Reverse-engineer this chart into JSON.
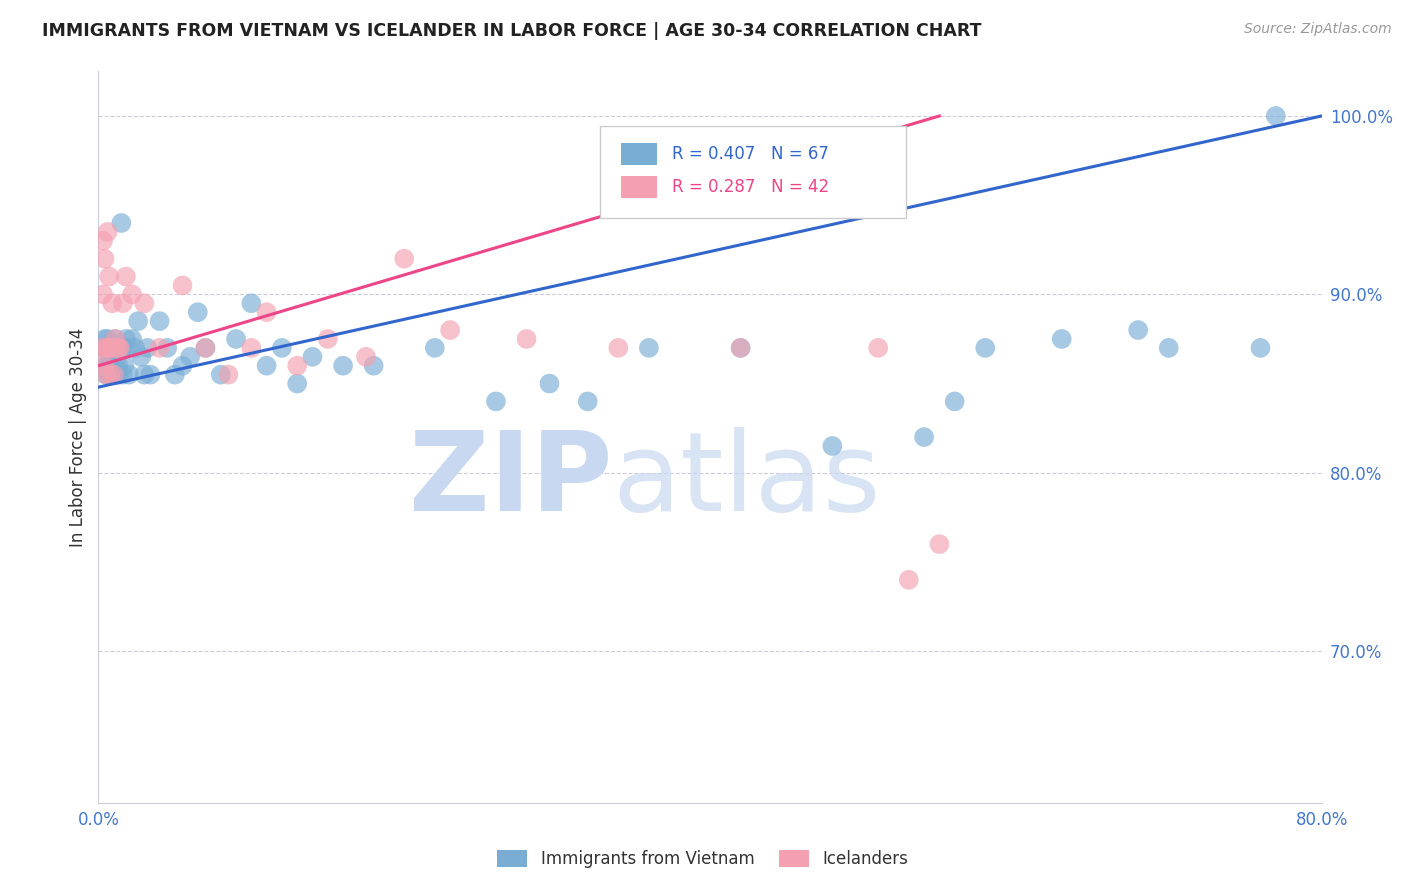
{
  "title": "IMMIGRANTS FROM VIETNAM VS ICELANDER IN LABOR FORCE | AGE 30-34 CORRELATION CHART",
  "source": "Source: ZipAtlas.com",
  "ylabel": "In Labor Force | Age 30-34",
  "xlim": [
    0.0,
    0.8
  ],
  "ylim": [
    0.615,
    1.025
  ],
  "yticks": [
    0.7,
    0.8,
    0.9,
    1.0
  ],
  "ytick_labels": [
    "70.0%",
    "80.0%",
    "90.0%",
    "100.0%"
  ],
  "blue_R": 0.407,
  "blue_N": 67,
  "pink_R": 0.287,
  "pink_N": 42,
  "blue_color": "#7aadd4",
  "pink_color": "#f4a0b0",
  "blue_line_color": "#3366cc",
  "pink_line_color": "#ee4488",
  "axis_color": "#4477cc",
  "watermark_zip": "ZIP",
  "watermark_atlas": "atlas",
  "legend_label_blue": "Immigrants from Vietnam",
  "legend_label_pink": "Icelanders",
  "blue_points_x": [
    0.003,
    0.004,
    0.004,
    0.005,
    0.005,
    0.006,
    0.006,
    0.007,
    0.007,
    0.008,
    0.008,
    0.009,
    0.009,
    0.01,
    0.01,
    0.011,
    0.011,
    0.012,
    0.012,
    0.013,
    0.013,
    0.014,
    0.015,
    0.016,
    0.016,
    0.017,
    0.018,
    0.019,
    0.02,
    0.022,
    0.024,
    0.026,
    0.028,
    0.03,
    0.032,
    0.034,
    0.04,
    0.045,
    0.05,
    0.055,
    0.06,
    0.065,
    0.07,
    0.08,
    0.09,
    0.1,
    0.11,
    0.12,
    0.13,
    0.14,
    0.16,
    0.18,
    0.22,
    0.26,
    0.295,
    0.32,
    0.36,
    0.42,
    0.48,
    0.54,
    0.56,
    0.58,
    0.63,
    0.68,
    0.7,
    0.76,
    0.77
  ],
  "blue_points_y": [
    0.87,
    0.875,
    0.86,
    0.87,
    0.855,
    0.875,
    0.86,
    0.87,
    0.855,
    0.87,
    0.86,
    0.87,
    0.855,
    0.87,
    0.855,
    0.875,
    0.86,
    0.855,
    0.87,
    0.86,
    0.855,
    0.87,
    0.94,
    0.87,
    0.855,
    0.86,
    0.875,
    0.87,
    0.855,
    0.875,
    0.87,
    0.885,
    0.865,
    0.855,
    0.87,
    0.855,
    0.885,
    0.87,
    0.855,
    0.86,
    0.865,
    0.89,
    0.87,
    0.855,
    0.875,
    0.895,
    0.86,
    0.87,
    0.85,
    0.865,
    0.86,
    0.86,
    0.87,
    0.84,
    0.85,
    0.84,
    0.87,
    0.87,
    0.815,
    0.82,
    0.84,
    0.87,
    0.875,
    0.88,
    0.87,
    0.87,
    1.0
  ],
  "pink_points_x": [
    0.002,
    0.003,
    0.003,
    0.004,
    0.004,
    0.005,
    0.005,
    0.006,
    0.006,
    0.007,
    0.007,
    0.008,
    0.008,
    0.009,
    0.009,
    0.01,
    0.01,
    0.011,
    0.012,
    0.013,
    0.014,
    0.016,
    0.018,
    0.022,
    0.03,
    0.04,
    0.055,
    0.07,
    0.085,
    0.1,
    0.11,
    0.13,
    0.15,
    0.175,
    0.2,
    0.23,
    0.28,
    0.34,
    0.42,
    0.51,
    0.53,
    0.55
  ],
  "pink_points_y": [
    0.87,
    0.93,
    0.9,
    0.86,
    0.92,
    0.87,
    0.855,
    0.935,
    0.87,
    0.91,
    0.87,
    0.87,
    0.855,
    0.895,
    0.87,
    0.87,
    0.855,
    0.875,
    0.87,
    0.87,
    0.87,
    0.895,
    0.91,
    0.9,
    0.895,
    0.87,
    0.905,
    0.87,
    0.855,
    0.87,
    0.89,
    0.86,
    0.875,
    0.865,
    0.92,
    0.88,
    0.875,
    0.87,
    0.87,
    0.87,
    0.74,
    0.76
  ],
  "blue_line_x": [
    0.0,
    0.8
  ],
  "blue_line_y": [
    0.848,
    1.0
  ],
  "pink_line_x": [
    0.0,
    0.55
  ],
  "pink_line_y": [
    0.86,
    1.0
  ]
}
